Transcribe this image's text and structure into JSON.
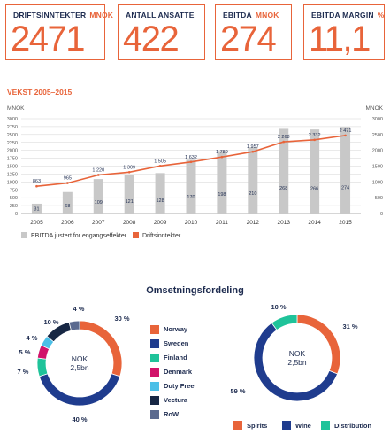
{
  "kpis": [
    {
      "label": "DRIFTSINNTEKTER",
      "unit": "MNOK",
      "value": "2471"
    },
    {
      "label": "ANTALL ANSATTE",
      "unit": "",
      "value": "422"
    },
    {
      "label": "EBITDA",
      "unit": "MNOK",
      "value": "274"
    },
    {
      "label": "EBITDA MARGIN",
      "unit": "%",
      "value": "11,1"
    }
  ],
  "colors": {
    "accent": "#e8643a",
    "navy": "#1d2b4f",
    "bar": "#c8c8c8"
  },
  "chart_data": [
    {
      "type": "bar",
      "title": "VEKST 2005–2015",
      "ylabel_left": "MNOK",
      "ylabel_right": "MNOK",
      "categories": [
        "2005",
        "2006",
        "2007",
        "2008",
        "2009",
        "2010",
        "2011",
        "2012",
        "2013",
        "2014",
        "2015"
      ],
      "yticks": [
        "0",
        "250",
        "500",
        "750",
        "1000",
        "1250",
        "1500",
        "1750",
        "2000",
        "2250",
        "2500",
        "2750",
        "3000"
      ],
      "yticks_right": [
        "0",
        "500",
        "1000",
        "1500",
        "2000",
        "2500",
        "3000"
      ],
      "ylim_left": [
        0,
        3000
      ],
      "ylim_right": [
        0,
        3000
      ],
      "series": [
        {
          "name": "EBITDA justert for engangseffekter",
          "type": "bar",
          "axis": "left",
          "scale": 10,
          "values": [
            31,
            68,
            109,
            121,
            128,
            170,
            198,
            210,
            268,
            266,
            274
          ],
          "labels": [
            "31",
            "68",
            "109",
            "121",
            "128",
            "170",
            "198",
            "210",
            "268",
            "266",
            "274"
          ]
        },
        {
          "name": "Driftsinntekter",
          "type": "line",
          "axis": "right",
          "values": [
            863,
            965,
            1220,
            1309,
            1505,
            1632,
            1789,
            1957,
            2268,
            2332,
            2471
          ],
          "labels": [
            "863",
            "965",
            "1 220",
            "1 309",
            "1 505",
            "1 632",
            "1 789",
            "1 957",
            "2 268",
            "2 332",
            "2 471"
          ]
        }
      ],
      "grid": true,
      "legend": "bottom-left"
    },
    {
      "type": "pie",
      "title": "Omsetningsfordeling",
      "center_label": "NOK",
      "center_value": "2,5bn",
      "slices": [
        {
          "name": "Norway",
          "value": 30,
          "label": "30 %",
          "color": "#e8643a"
        },
        {
          "name": "Sweden",
          "value": 40,
          "label": "40 %",
          "color": "#1f3c8e"
        },
        {
          "name": "Finland",
          "value": 7,
          "label": "7 %",
          "color": "#1fc39a"
        },
        {
          "name": "Denmark",
          "value": 5,
          "label": "5 %",
          "color": "#d1136a"
        },
        {
          "name": "Duty Free",
          "value": 4,
          "label": "4 %",
          "color": "#4cbfe7"
        },
        {
          "name": "Vectura",
          "value": 10,
          "label": "10 %",
          "color": "#172744"
        },
        {
          "name": "RoW",
          "value": 4,
          "label": "4 %",
          "color": "#5b6a8f"
        }
      ],
      "legend": "right"
    },
    {
      "type": "pie",
      "center_label": "NOK",
      "center_value": "2,5bn",
      "slices": [
        {
          "name": "Spirits",
          "value": 31,
          "label": "31 %",
          "color": "#e8643a"
        },
        {
          "name": "Wine",
          "value": 59,
          "label": "59 %",
          "color": "#1f3c8e"
        },
        {
          "name": "Distribution",
          "value": 10,
          "label": "10 %",
          "color": "#1fc39a"
        }
      ],
      "legend": "bottom"
    }
  ]
}
